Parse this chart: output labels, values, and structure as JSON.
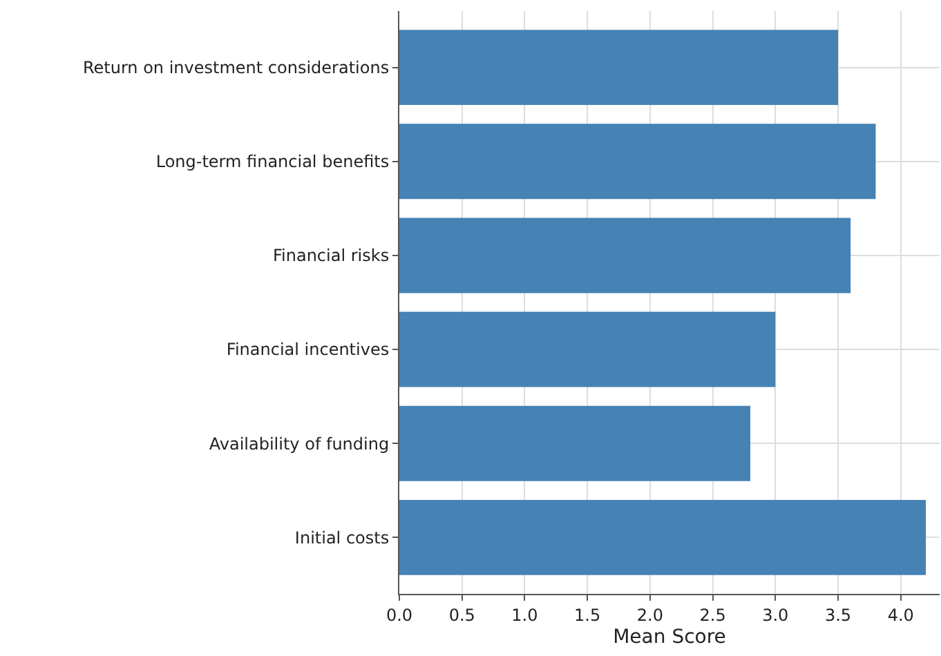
{
  "chart_data": {
    "type": "bar",
    "orientation": "horizontal",
    "xlabel": "Mean Score",
    "categories": [
      "Return on investment considerations",
      "Long-term financial benefits",
      "Financial risks",
      "Financial incentives",
      "Availability of funding",
      "Initial costs"
    ],
    "values": [
      3.5,
      3.8,
      3.6,
      3.0,
      2.8,
      4.2
    ],
    "color": "#4682b4",
    "xlim": [
      0,
      4.31
    ],
    "xticks": [
      {
        "value": 0,
        "label": "0.0"
      },
      0.5,
      {
        "value": 1,
        "label": "1.0"
      },
      1.5,
      {
        "value": 2,
        "label": "2.0"
      },
      2.5,
      {
        "value": 3,
        "label": "3.0"
      },
      3.5,
      {
        "value": 4,
        "label": "4.0"
      }
    ],
    "grid": true
  }
}
